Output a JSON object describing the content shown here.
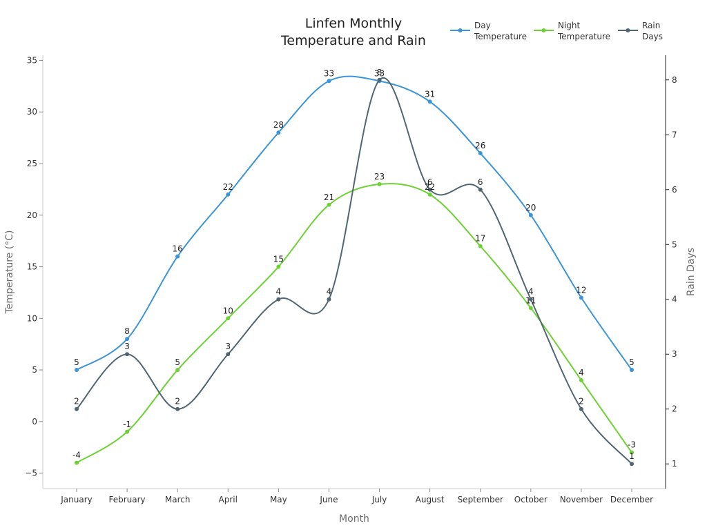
{
  "chart_data": {
    "type": "line",
    "title": [
      "Linfen Monthly",
      "Temperature and Rain"
    ],
    "xlabel": "Month",
    "ylabel_left": "Temperature (°C)",
    "ylabel_right": "Rain Days",
    "categories": [
      "January",
      "February",
      "March",
      "April",
      "May",
      "June",
      "July",
      "August",
      "September",
      "October",
      "November",
      "December"
    ],
    "y_left": {
      "range": [
        -6.5,
        35.5
      ],
      "ticks": [
        -5,
        0,
        5,
        10,
        15,
        20,
        25,
        30,
        35
      ],
      "tick_labels": [
        "−5",
        "0",
        "5",
        "10",
        "15",
        "20",
        "25",
        "30",
        "35"
      ]
    },
    "y_right": {
      "range": [
        0.55,
        8.45
      ],
      "ticks": [
        1,
        2,
        3,
        4,
        5,
        6,
        7,
        8
      ],
      "tick_labels": [
        "1",
        "2",
        "3",
        "4",
        "5",
        "6",
        "7",
        "8"
      ]
    },
    "grid": false,
    "legend_position": "top-right",
    "series": [
      {
        "name": [
          "Day",
          "Temperature"
        ],
        "axis": "left",
        "color": "#3a94d9",
        "values": [
          5,
          8,
          16,
          22,
          28,
          33,
          33,
          31,
          26,
          20,
          12,
          5
        ],
        "labels": [
          "5",
          "8",
          "16",
          "22",
          "28",
          "33",
          "33",
          "31",
          "26",
          "20",
          "12",
          "5"
        ]
      },
      {
        "name": [
          "Night",
          "Temperature"
        ],
        "axis": "left",
        "color": "#6cd132",
        "values": [
          -4,
          -1,
          5,
          10,
          15,
          21,
          23,
          22,
          17,
          11,
          4,
          -3
        ],
        "labels": [
          "-4",
          "-1",
          "5",
          "10",
          "15",
          "21",
          "23",
          "22",
          "17",
          "11",
          "4",
          "-3"
        ]
      },
      {
        "name": [
          "Rain",
          "Days"
        ],
        "axis": "right",
        "color": "#4f6672",
        "values": [
          2,
          3,
          2,
          3,
          4,
          4,
          8,
          6,
          6,
          4,
          2,
          1
        ],
        "labels": [
          "2",
          "3",
          "2",
          "3",
          "4",
          "4",
          "8",
          "6",
          "6",
          "4",
          "2",
          "1"
        ]
      }
    ]
  }
}
